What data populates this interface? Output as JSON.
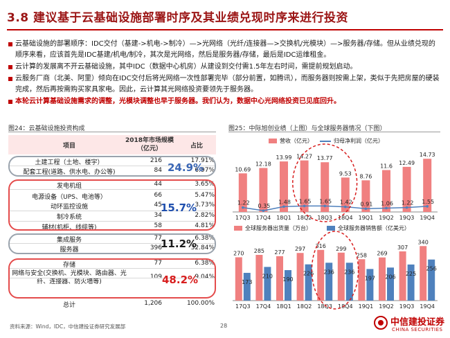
{
  "title": "3.8 建议基于云基础设施部署时序及其业绩兑现时序来进行投资",
  "bullets": [
    {
      "text": "云基础设施的部署顺序：IDC交付（基建->机电->制冷）—>光网络（光纤/连接器—>交换机/光模块）—>服务器/存储。但从业绩兑现的顺序来看，应该首先是IDC基建/机电/制冷，其次是光网络，然后是服务器/存储，最后是IDC运维租金。",
      "highlight": false
    },
    {
      "text": "云计算的发展离不开云基础设施，其中IDC（数据中心机房）从建设到交付需1.5年左右时间，需提前规划启动。",
      "highlight": false
    },
    {
      "text": "云服务厂商（北美、阿里）倾向在IDC交付后将光网络一次性部署完毕（部分前置，如腾讯），而服务器则按需上架，类似于先把房屋的硬装完成，然后再按需购买家具家电。因此，云计算其光网络投资要领先于服务器。",
      "highlight": false
    },
    {
      "text": "本轮云计算基础设施需求的调整，光模块调整也早于服务器。我们认为，数据中心光网络投资已见底回升。",
      "highlight": true
    }
  ],
  "figure24": {
    "label": "图24：云基础设施投资构成",
    "headers": {
      "item": "项目",
      "value": "2018年市场规模\n（亿元）",
      "share": "占比"
    },
    "rows": [
      {
        "name": "土建工程（土地、楼宇）",
        "value": "216",
        "share": "17.91%"
      },
      {
        "name": "配套工程(道路、供水电、办公等)",
        "value": "84",
        "share": "6.97%"
      },
      {
        "name": "发电机组",
        "value": "44",
        "share": "3.65%"
      },
      {
        "name": "电源设备（UPS、电池等）",
        "value": "66",
        "share": "5.47%"
      },
      {
        "name": "动环监控设施",
        "value": "45",
        "share": "3.73%"
      },
      {
        "name": "制冷系统",
        "value": "34",
        "share": "2.82%"
      },
      {
        "name": "辅材(机柜、线缆等)",
        "value": "58",
        "share": "4.81%"
      },
      {
        "name": "集成服务",
        "value": "77",
        "share": "6.38%"
      },
      {
        "name": "服务器",
        "value": "396",
        "share": "32.84%"
      },
      {
        "name": "存储",
        "value": "77",
        "share": "6.38%"
      },
      {
        "name": "网络与安全(交换机、光模块、路由器、光纤、连接器、防火墙等)",
        "value": "109",
        "share": "9.04%"
      },
      {
        "name": "总计",
        "value": "1,206",
        "share": "100.00%"
      }
    ],
    "group_totals": [
      {
        "text": "24.9%",
        "color": "#3a66b5"
      },
      {
        "text": "15.7%",
        "color": "#1f4fae"
      },
      {
        "text": "11.2%",
        "color": "#1a1a1a"
      },
      {
        "text": "48.2%",
        "color": "#d81e1e"
      }
    ]
  },
  "figure25": {
    "label": "图25：中际旭创业绩（上图）与全球服务器情况（下图）"
  },
  "chart_data": [
    {
      "type": "bar",
      "categories": [
        "17Q3",
        "17Q4",
        "18Q1",
        "18Q2",
        "18Q3",
        "18Q4",
        "19Q1",
        "19Q2",
        "19Q3",
        "19Q4"
      ],
      "series": [
        {
          "name": "营收（亿元）",
          "kind": "bar",
          "color": "#f08080",
          "values": [
            10.69,
            12.18,
            13.99,
            14.27,
            13.77,
            9.53,
            8.76,
            11.6,
            12.49,
            14.73
          ]
        },
        {
          "name": "归母净利润（亿元）",
          "kind": "line",
          "color": "#4f81bd",
          "values": [
            1.22,
            0.35,
            1.48,
            1.65,
            1.65,
            1.42,
            0.91,
            1.06,
            1.22,
            1.55
          ]
        }
      ],
      "ylim": [
        0,
        16.5
      ]
    },
    {
      "type": "bar",
      "categories": [
        "17Q3",
        "17Q4",
        "18Q1",
        "18Q2",
        "18Q3",
        "18Q4",
        "19Q1",
        "19Q2",
        "19Q3",
        "19Q4"
      ],
      "series": [
        {
          "name": "全球服务器出货量（万台）",
          "kind": "bar",
          "color": "#f08080",
          "values": [
            270,
            285,
            277,
            297,
            316,
            299,
            258,
            269,
            307,
            340
          ]
        },
        {
          "name": "全球服务器销售额（亿美元）",
          "kind": "bar",
          "color": "#4f81bd",
          "values": [
            173,
            210,
            190,
            226,
            236,
            236,
            197,
            206,
            225,
            256
          ]
        }
      ],
      "ylim": [
        0,
        380
      ]
    }
  ],
  "footer": {
    "source": "资料来源：Wind，IDC，中信建投证券研究发展部",
    "page": "28",
    "logo_cn": "中信建投证券",
    "logo_en": "CHINA SECURITIES"
  }
}
